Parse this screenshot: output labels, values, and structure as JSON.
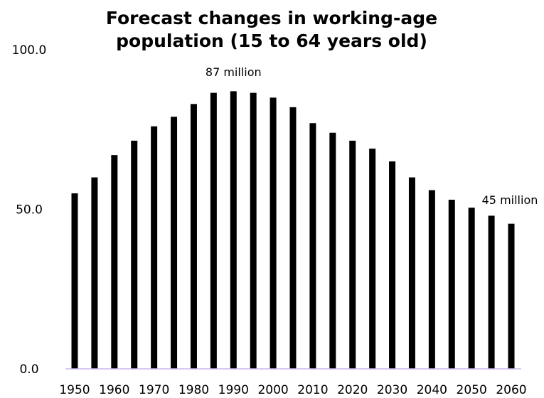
{
  "chart_data": {
    "type": "bar",
    "title_lines": [
      "Forecast changes in working-age",
      "population (15 to 64 years old)"
    ],
    "xlabel": "",
    "ylabel": "",
    "ylim": [
      0,
      100
    ],
    "y_ticks": [
      "0.0",
      "50.0",
      "100.0"
    ],
    "x_tick_labels": [
      "1950",
      "1960",
      "1970",
      "1980",
      "1990",
      "2000",
      "2010",
      "2020",
      "2030",
      "2040",
      "2050",
      "2060"
    ],
    "categories": [
      1950,
      1955,
      1960,
      1965,
      1970,
      1975,
      1980,
      1985,
      1990,
      1995,
      2000,
      2005,
      2010,
      2015,
      2020,
      2025,
      2030,
      2035,
      2040,
      2045,
      2050,
      2055,
      2060
    ],
    "values": [
      55.0,
      60.0,
      67.0,
      71.5,
      76.0,
      79.0,
      83.0,
      86.5,
      87.0,
      86.5,
      85.0,
      82.0,
      77.0,
      74.0,
      71.5,
      69.0,
      65.0,
      60.0,
      56.0,
      53.0,
      50.5,
      48.0,
      45.5
    ],
    "grid": false,
    "legend": false,
    "bar_color": "#000000",
    "baseline_color": "#c9b8ee",
    "annotations": [
      {
        "text": "87 million",
        "category": 1990
      },
      {
        "text": "45 million",
        "category": 2060
      }
    ]
  }
}
